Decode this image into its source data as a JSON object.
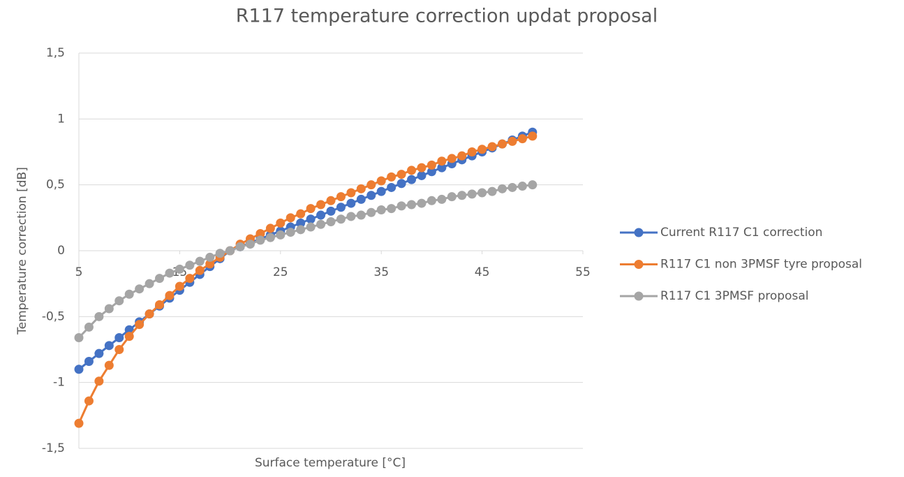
{
  "chart_data": {
    "type": "line",
    "title": "R117 temperature correction updat proposal",
    "xlabel": "Surface temperature [°C]",
    "ylabel": "Temperature correction [dB]",
    "x": [
      5,
      6,
      7,
      8,
      9,
      10,
      11,
      12,
      13,
      14,
      15,
      16,
      17,
      18,
      19,
      20,
      21,
      22,
      23,
      24,
      25,
      26,
      27,
      28,
      29,
      30,
      31,
      32,
      33,
      34,
      35,
      36,
      37,
      38,
      39,
      40,
      41,
      42,
      43,
      44,
      45,
      46,
      47,
      48,
      49,
      50
    ],
    "series": [
      {
        "name": "Current R117 C1 correction",
        "color": "#4472c4",
        "values": [
          -0.9,
          -0.84,
          -0.78,
          -0.72,
          -0.66,
          -0.6,
          -0.54,
          -0.48,
          -0.42,
          -0.36,
          -0.3,
          -0.24,
          -0.18,
          -0.12,
          -0.06,
          0,
          0.03,
          0.06,
          0.09,
          0.12,
          0.15,
          0.18,
          0.21,
          0.24,
          0.27,
          0.3,
          0.33,
          0.36,
          0.39,
          0.42,
          0.45,
          0.48,
          0.51,
          0.54,
          0.57,
          0.6,
          0.63,
          0.66,
          0.69,
          0.72,
          0.75,
          0.78,
          0.81,
          0.84,
          0.87,
          0.9
        ]
      },
      {
        "name": "R117 C1 non 3PMSF tyre proposal",
        "color": "#ed7d31",
        "values": [
          -1.31,
          -1.14,
          -0.99,
          -0.87,
          -0.75,
          -0.65,
          -0.56,
          -0.48,
          -0.41,
          -0.34,
          -0.27,
          -0.21,
          -0.15,
          -0.1,
          -0.05,
          0,
          0.05,
          0.09,
          0.13,
          0.17,
          0.21,
          0.25,
          0.28,
          0.32,
          0.35,
          0.38,
          0.41,
          0.44,
          0.47,
          0.5,
          0.53,
          0.56,
          0.58,
          0.61,
          0.63,
          0.65,
          0.68,
          0.7,
          0.72,
          0.75,
          0.77,
          0.79,
          0.81,
          0.83,
          0.85,
          0.87
        ]
      },
      {
        "name": "R117 C1 3PMSF proposal",
        "color": "#a5a5a5",
        "values": [
          -0.66,
          -0.58,
          -0.5,
          -0.44,
          -0.38,
          -0.33,
          -0.29,
          -0.25,
          -0.21,
          -0.17,
          -0.14,
          -0.11,
          -0.08,
          -0.05,
          -0.02,
          0,
          0.03,
          0.05,
          0.08,
          0.1,
          0.12,
          0.14,
          0.16,
          0.18,
          0.2,
          0.22,
          0.24,
          0.26,
          0.27,
          0.29,
          0.31,
          0.32,
          0.34,
          0.35,
          0.36,
          0.38,
          0.39,
          0.41,
          0.42,
          0.43,
          0.44,
          0.45,
          0.47,
          0.48,
          0.49,
          0.5
        ]
      }
    ],
    "xlim": [
      5,
      55
    ],
    "xticks": [
      5,
      15,
      25,
      35,
      45,
      55
    ],
    "ylim": [
      -1.5,
      1.5
    ],
    "yticks": [
      {
        "value": -1.5,
        "label": "-1,5"
      },
      -1,
      {
        "value": -0.5,
        "label": "-0,5"
      },
      0,
      {
        "value": 0.5,
        "label": "0,5"
      },
      1,
      {
        "value": 1.5,
        "label": "1,5"
      }
    ],
    "grid": true,
    "legend": "right"
  }
}
